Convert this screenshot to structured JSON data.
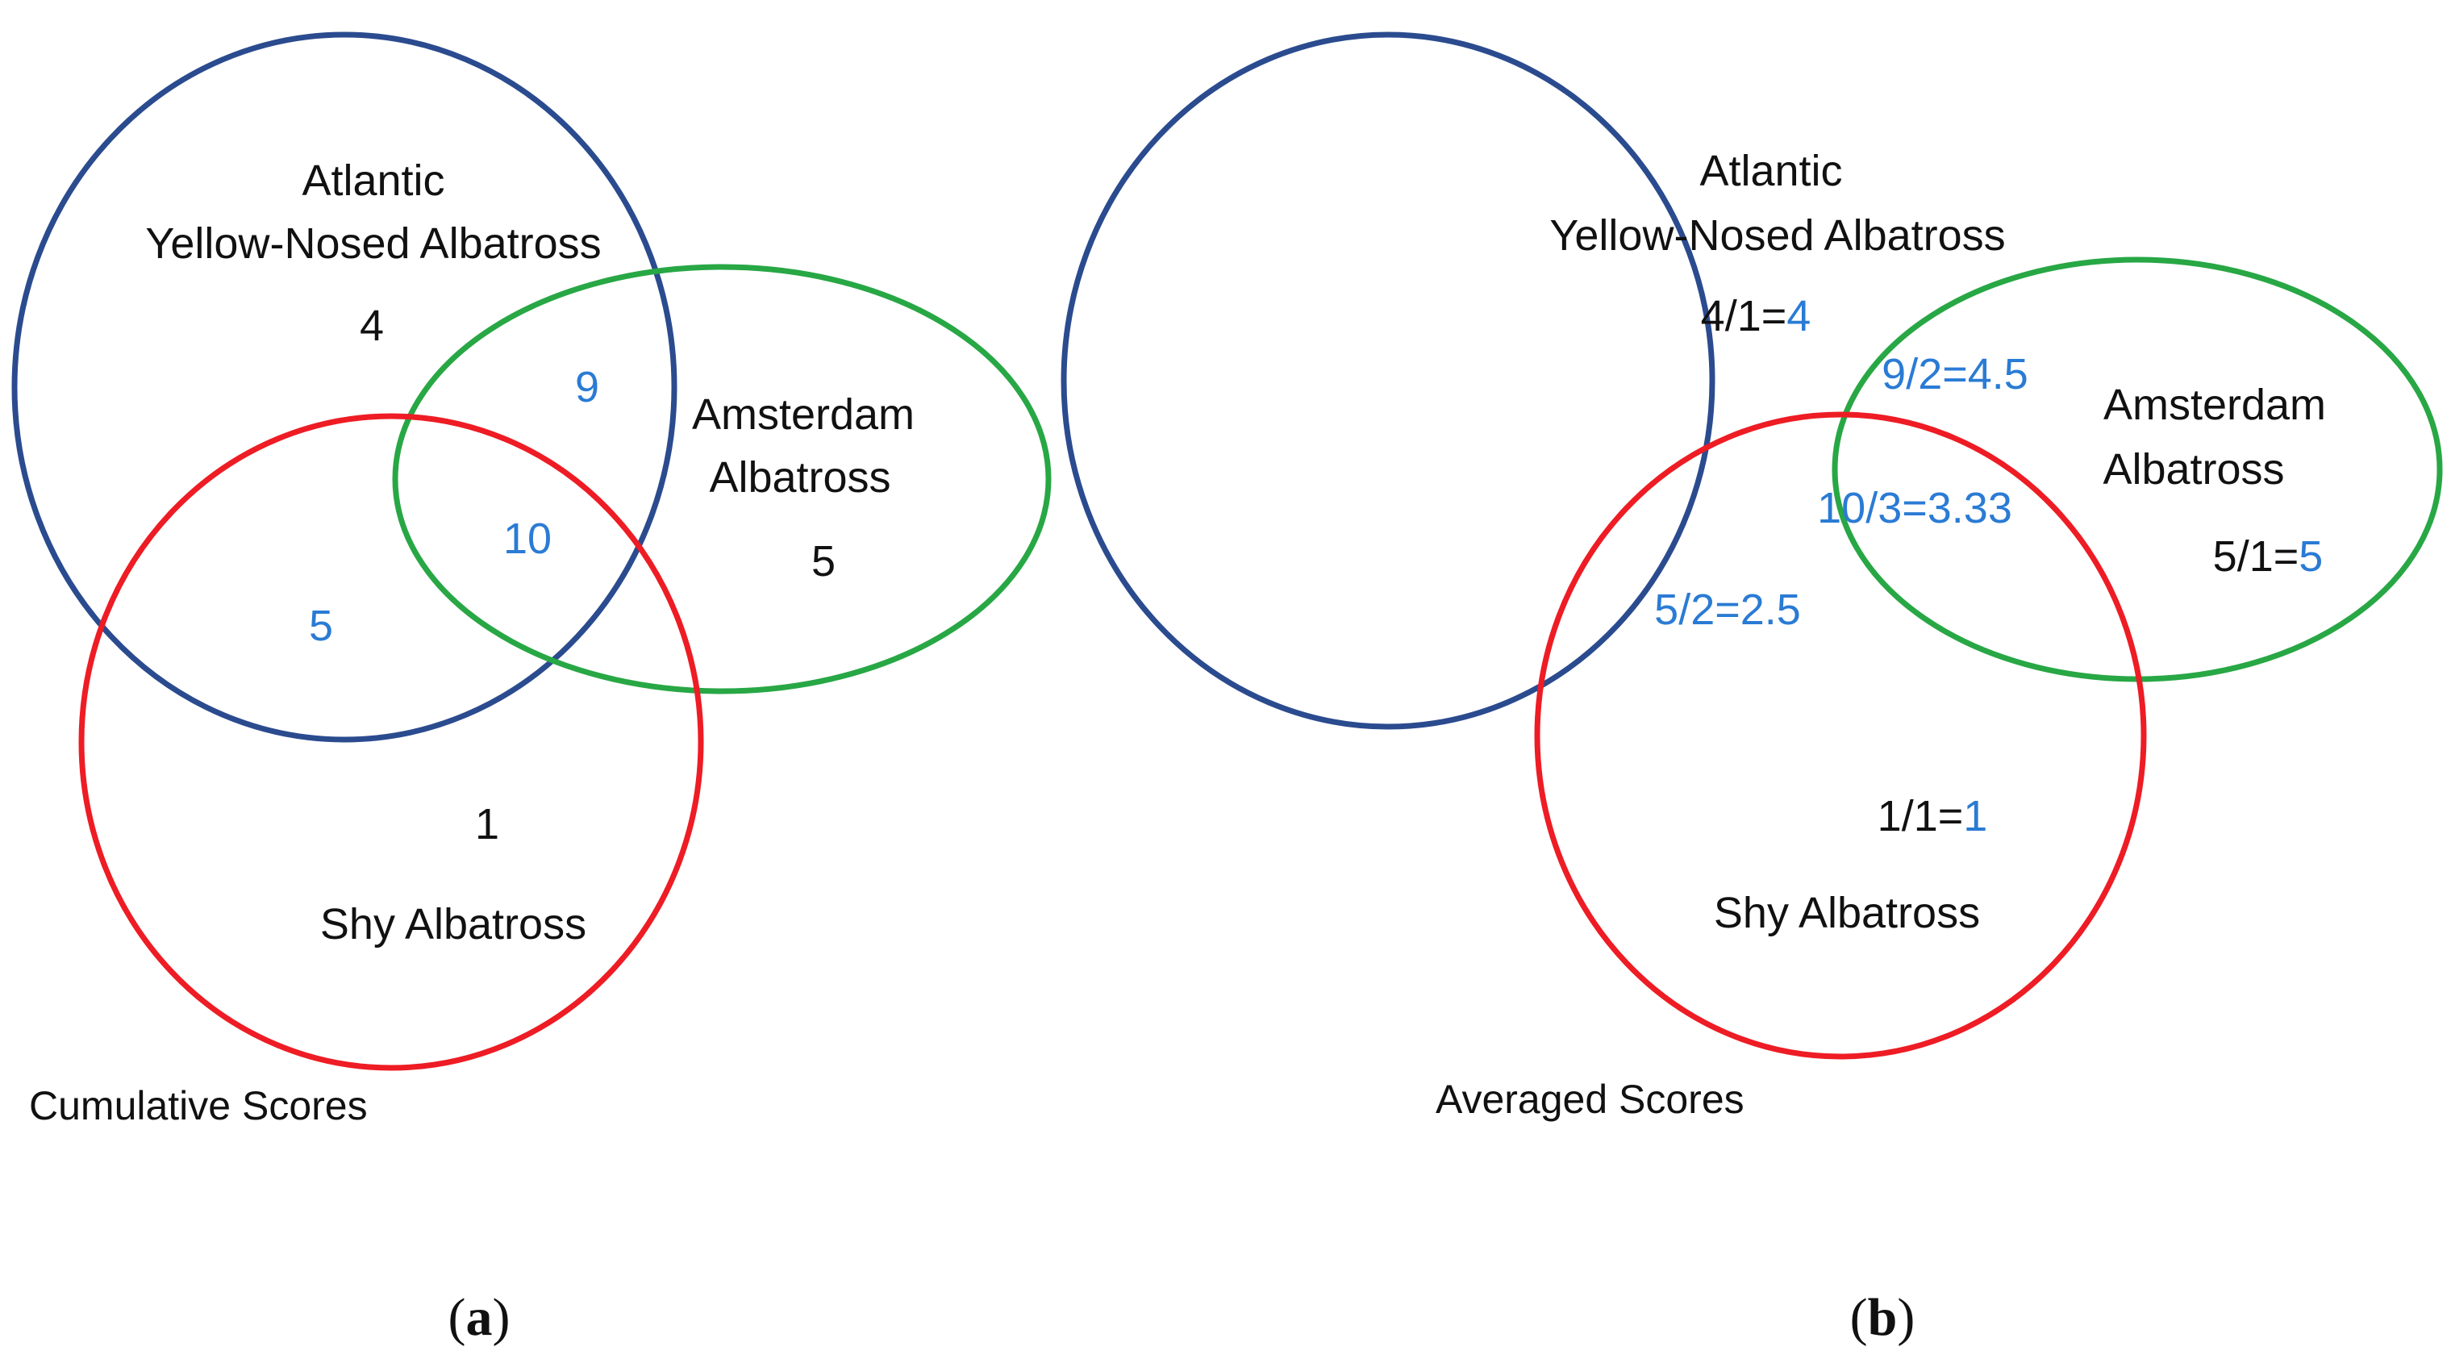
{
  "colors": {
    "atlantic": "#2b4b8f",
    "amsterdam": "#28a745",
    "shy": "#ee1c24",
    "text": "#111111",
    "blue_value": "#2a7bd4"
  },
  "panel_a": {
    "label_atlantic_1": "Atlantic",
    "label_atlantic_2": "Yellow-Nosed Albatross",
    "label_amsterdam_1": "Amsterdam",
    "label_amsterdam_2": "Albatross",
    "label_shy": "Shy Albatross",
    "val_atlantic": "4",
    "val_atl_ams": "9",
    "val_all": "10",
    "val_amsterdam": "5",
    "val_atl_shy": "5",
    "val_shy": "1",
    "caption": "Cumulative Scores",
    "subfig_open": "(",
    "subfig_letter": "a",
    "subfig_close": ")"
  },
  "panel_b": {
    "label_atlantic_1": "Atlantic",
    "label_atlantic_2": "Yellow-Nosed Albatross",
    "label_amsterdam_1": "Amsterdam",
    "label_amsterdam_2": "Albatross",
    "label_shy": "Shy Albatross",
    "val_atlantic_expr": "4/1=",
    "val_atlantic_res": "4",
    "val_atl_ams": "9/2=4.5",
    "val_all": "10/3=3.33",
    "val_amsterdam_expr": "5/1=",
    "val_amsterdam_res": "5",
    "val_atl_shy": "5/2=2.5",
    "val_shy_expr": "1/1=",
    "val_shy_res": "1",
    "caption": "Averaged Scores",
    "subfig_open": "(",
    "subfig_letter": "b",
    "subfig_close": ")"
  }
}
